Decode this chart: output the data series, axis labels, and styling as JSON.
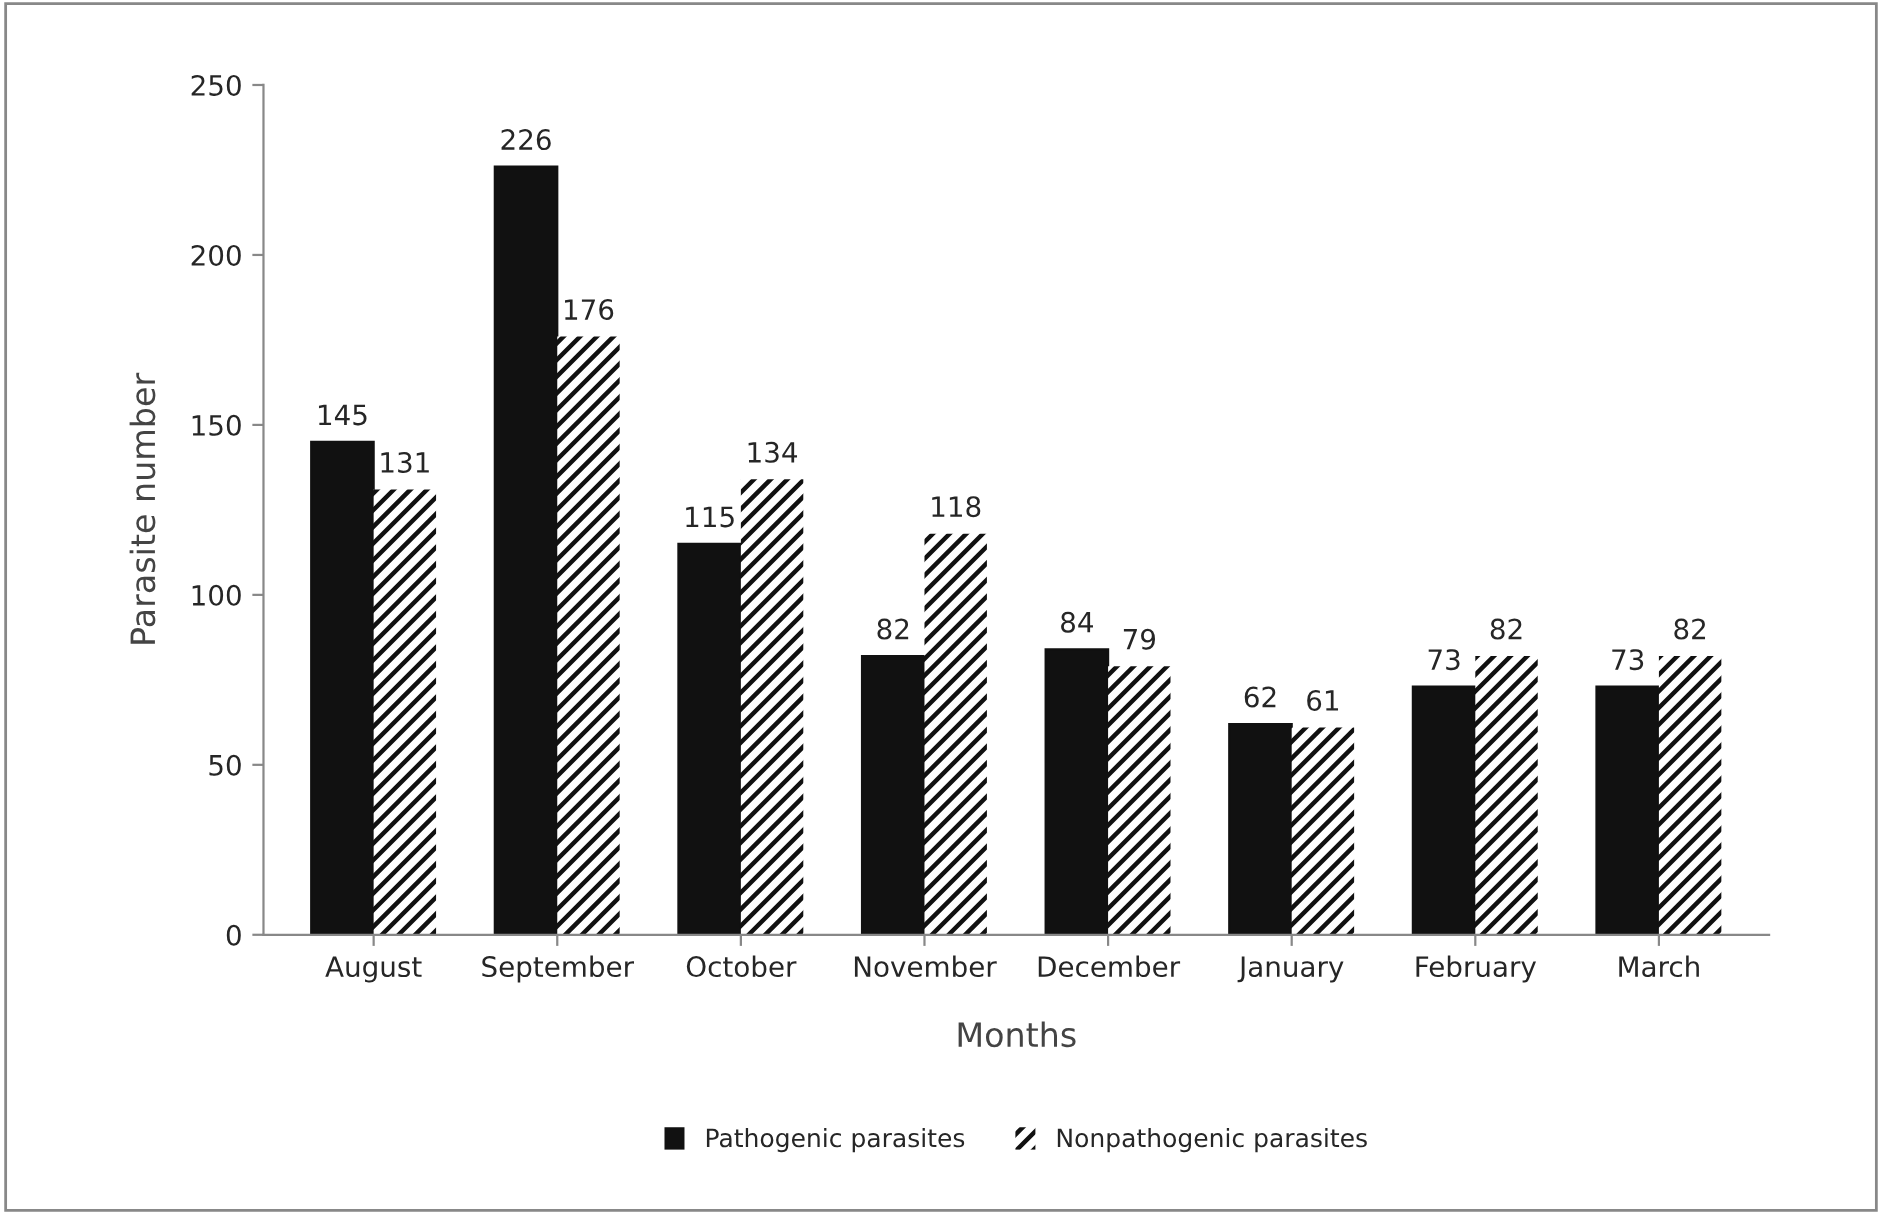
{
  "chart_data": {
    "type": "bar",
    "xlabel": "Months",
    "ylabel": "Parasite number",
    "categories": [
      "August",
      "September",
      "October",
      "November",
      "December",
      "January",
      "February",
      "March"
    ],
    "series": [
      {
        "name": "Pathogenic parasites",
        "color": "#111111",
        "values": [
          145,
          226,
          115,
          82,
          84,
          62,
          73,
          73
        ]
      },
      {
        "name": "Nonpathogenic parasites",
        "color": "#ffffff",
        "values": [
          131,
          176,
          134,
          118,
          79,
          61,
          82,
          82
        ]
      }
    ],
    "ylim": [
      0,
      250
    ],
    "yticks": [
      0,
      50,
      100,
      150,
      200,
      250
    ],
    "grid": false,
    "legend": "bottom",
    "data_labels": true
  }
}
